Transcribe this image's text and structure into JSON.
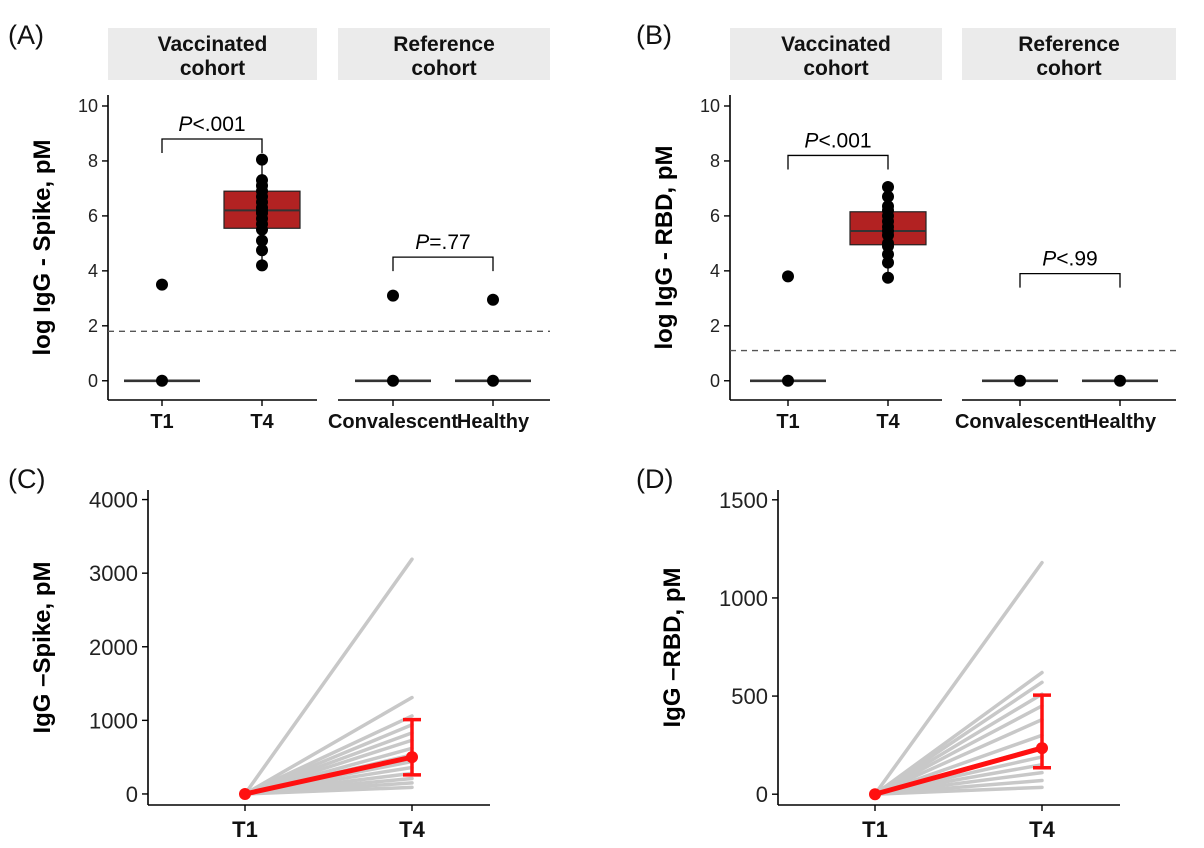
{
  "figure": {
    "panel_labels": [
      "(A)",
      "(B)",
      "(C)",
      "(D)"
    ]
  },
  "chart_data": [
    {
      "panel": "(A)",
      "type": "box",
      "ylabel": "log IgG - Spike, pM",
      "ylim": [
        -0.7,
        10.4
      ],
      "yticks": [
        0,
        2,
        4,
        6,
        8,
        10
      ],
      "facets": [
        "Vaccinated\ncohort",
        "Reference\ncohort"
      ],
      "categories": [
        "T1",
        "T4",
        "Convalescent",
        "Healthy"
      ],
      "threshold": 1.8,
      "groups": [
        {
          "category": "T1",
          "facet": 0,
          "median": 0,
          "q1": 0,
          "q3": 0,
          "whisker_low": 0,
          "whisker_high": 0,
          "points": [
            0,
            3.5
          ]
        },
        {
          "category": "T4",
          "facet": 0,
          "median": 6.2,
          "q1": 5.55,
          "q3": 6.9,
          "whisker_low": 4.2,
          "whisker_high": 8.05,
          "points": [
            4.2,
            4.75,
            5.1,
            5.5,
            5.7,
            5.9,
            6.1,
            6.2,
            6.3,
            6.5,
            6.7,
            6.9,
            7.1,
            7.3,
            8.05
          ]
        },
        {
          "category": "Convalescent",
          "facet": 1,
          "median": 0,
          "q1": 0,
          "q3": 0,
          "whisker_low": 0,
          "whisker_high": 0,
          "points": [
            0,
            3.1
          ]
        },
        {
          "category": "Healthy",
          "facet": 1,
          "median": 0,
          "q1": 0,
          "q3": 0,
          "whisker_low": 0,
          "whisker_high": 0,
          "points": [
            0,
            2.95
          ]
        }
      ],
      "comparisons": [
        {
          "from": "T1",
          "to": "T4",
          "label": "P<.001",
          "y": 8.8
        },
        {
          "from": "Convalescent",
          "to": "Healthy",
          "label": "P=.77",
          "y": 4.5
        }
      ]
    },
    {
      "panel": "(B)",
      "type": "box",
      "ylabel": "log IgG - RBD, pM",
      "ylim": [
        -0.7,
        10.4
      ],
      "yticks": [
        0,
        2,
        4,
        6,
        8,
        10
      ],
      "facets": [
        "Vaccinated\ncohort",
        "Reference\ncohort"
      ],
      "categories": [
        "T1",
        "T4",
        "Convalescent",
        "Healthy"
      ],
      "threshold": 1.1,
      "groups": [
        {
          "category": "T1",
          "facet": 0,
          "median": 0,
          "q1": 0,
          "q3": 0,
          "whisker_low": 0,
          "whisker_high": 0,
          "points": [
            0,
            3.8
          ]
        },
        {
          "category": "T4",
          "facet": 0,
          "median": 5.45,
          "q1": 4.95,
          "q3": 6.15,
          "whisker_low": 3.75,
          "whisker_high": 7.05,
          "points": [
            3.75,
            4.3,
            4.6,
            4.9,
            5.0,
            5.3,
            5.45,
            5.6,
            5.8,
            6.0,
            6.2,
            6.35,
            6.7,
            7.05
          ]
        },
        {
          "category": "Convalescent",
          "facet": 1,
          "median": 0,
          "q1": 0,
          "q3": 0,
          "whisker_low": 0,
          "whisker_high": 0,
          "points": [
            0
          ]
        },
        {
          "category": "Healthy",
          "facet": 1,
          "median": 0,
          "q1": 0,
          "q3": 0,
          "whisker_low": 0,
          "whisker_high": 0,
          "points": [
            0
          ]
        }
      ],
      "comparisons": [
        {
          "from": "T1",
          "to": "T4",
          "label": "P<.001",
          "y": 8.2
        },
        {
          "from": "Convalescent",
          "to": "Healthy",
          "label": "P<.99",
          "y": 3.9
        }
      ]
    },
    {
      "panel": "(C)",
      "type": "line",
      "ylabel": "IgG –Spike, pM",
      "ylim": [
        -150,
        4130
      ],
      "yticks": [
        0,
        1000,
        2000,
        3000,
        4000
      ],
      "categories": [
        "T1",
        "T4"
      ],
      "individual_t4": [
        3190,
        1310,
        1060,
        940,
        830,
        730,
        620,
        530,
        440,
        360,
        280,
        210,
        150,
        90
      ],
      "mean": [
        0,
        500
      ],
      "error_low": [
        0,
        260
      ],
      "error_high": [
        0,
        1010
      ]
    },
    {
      "panel": "(D)",
      "type": "line",
      "ylabel": "IgG –RBD, pM",
      "ylim": [
        -55,
        1550
      ],
      "yticks": [
        0,
        500,
        1000,
        1500
      ],
      "categories": [
        "T1",
        "T4"
      ],
      "individual_t4": [
        1180,
        620,
        570,
        510,
        450,
        380,
        300,
        240,
        190,
        150,
        110,
        70,
        35
      ],
      "mean": [
        0,
        235
      ],
      "error_low": [
        0,
        135
      ],
      "error_high": [
        0,
        505
      ]
    }
  ]
}
